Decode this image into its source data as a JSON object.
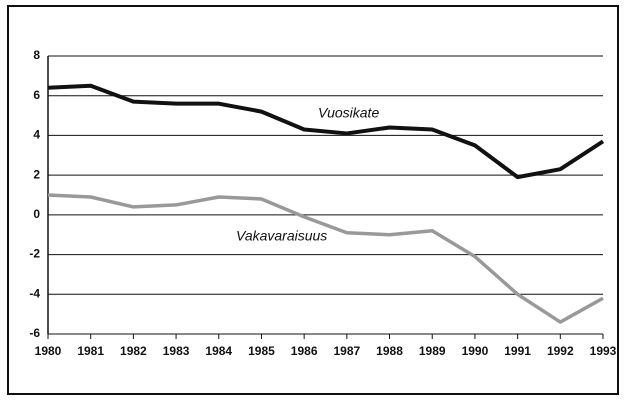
{
  "chart_data": {
    "type": "line",
    "x": [
      1980,
      1981,
      1982,
      1983,
      1984,
      1985,
      1986,
      1987,
      1988,
      1989,
      1990,
      1991,
      1992,
      1993
    ],
    "xlim": [
      1980,
      1993
    ],
    "xticks": [
      1980,
      1981,
      1982,
      1983,
      1984,
      1985,
      1986,
      1987,
      1988,
      1989,
      1990,
      1991,
      1992,
      1993
    ],
    "ylim": [
      -6,
      8
    ],
    "yticks": [
      -6,
      -4,
      -2,
      0,
      2,
      4,
      6,
      8
    ],
    "grid": true,
    "series": [
      {
        "name": "Vuosikate",
        "color": "#111111",
        "values": [
          6.4,
          6.5,
          5.7,
          5.6,
          5.6,
          5.2,
          4.3,
          4.1,
          4.4,
          4.3,
          3.5,
          1.9,
          2.3,
          3.7
        ]
      },
      {
        "name": "Vakavaraisuus",
        "color": "#999999",
        "values": [
          1.0,
          0.9,
          0.4,
          0.5,
          0.9,
          0.8,
          -0.1,
          -0.9,
          -1.0,
          -0.8,
          -2.1,
          -4.0,
          -5.4,
          -4.2
        ]
      }
    ]
  }
}
